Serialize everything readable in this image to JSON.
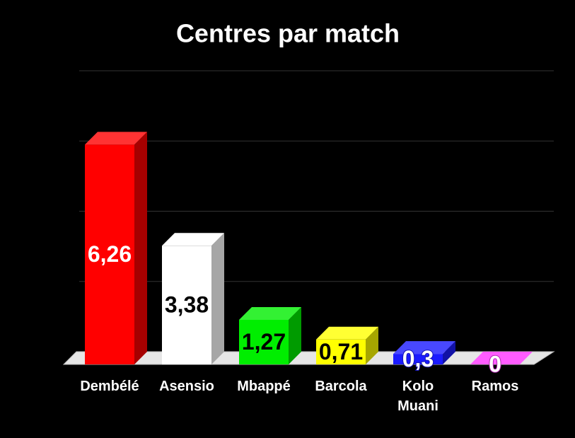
{
  "chart_data": {
    "type": "bar3d",
    "title": "Centres par match",
    "categories": [
      "Dembélé",
      "Asensio",
      "Mbappé",
      "Barcola",
      "Kolo Muani",
      "Ramos"
    ],
    "values": [
      6.26,
      3.38,
      1.27,
      0.71,
      0.3,
      0
    ],
    "value_labels": [
      "6,26",
      "3,38",
      "1,27",
      "0,71",
      "0,3",
      "0"
    ],
    "colors": [
      "#ff0000",
      "#ffffff",
      "#00ee00",
      "#ffff00",
      "#1a1aff",
      "#ff33ff"
    ],
    "label_colors": [
      "#ffffff",
      "#000000",
      "#000000",
      "#000000",
      "#ffffff",
      "#ffffff"
    ],
    "ylim": [
      0,
      8
    ],
    "grid_values": [
      2,
      4,
      6,
      8
    ]
  }
}
